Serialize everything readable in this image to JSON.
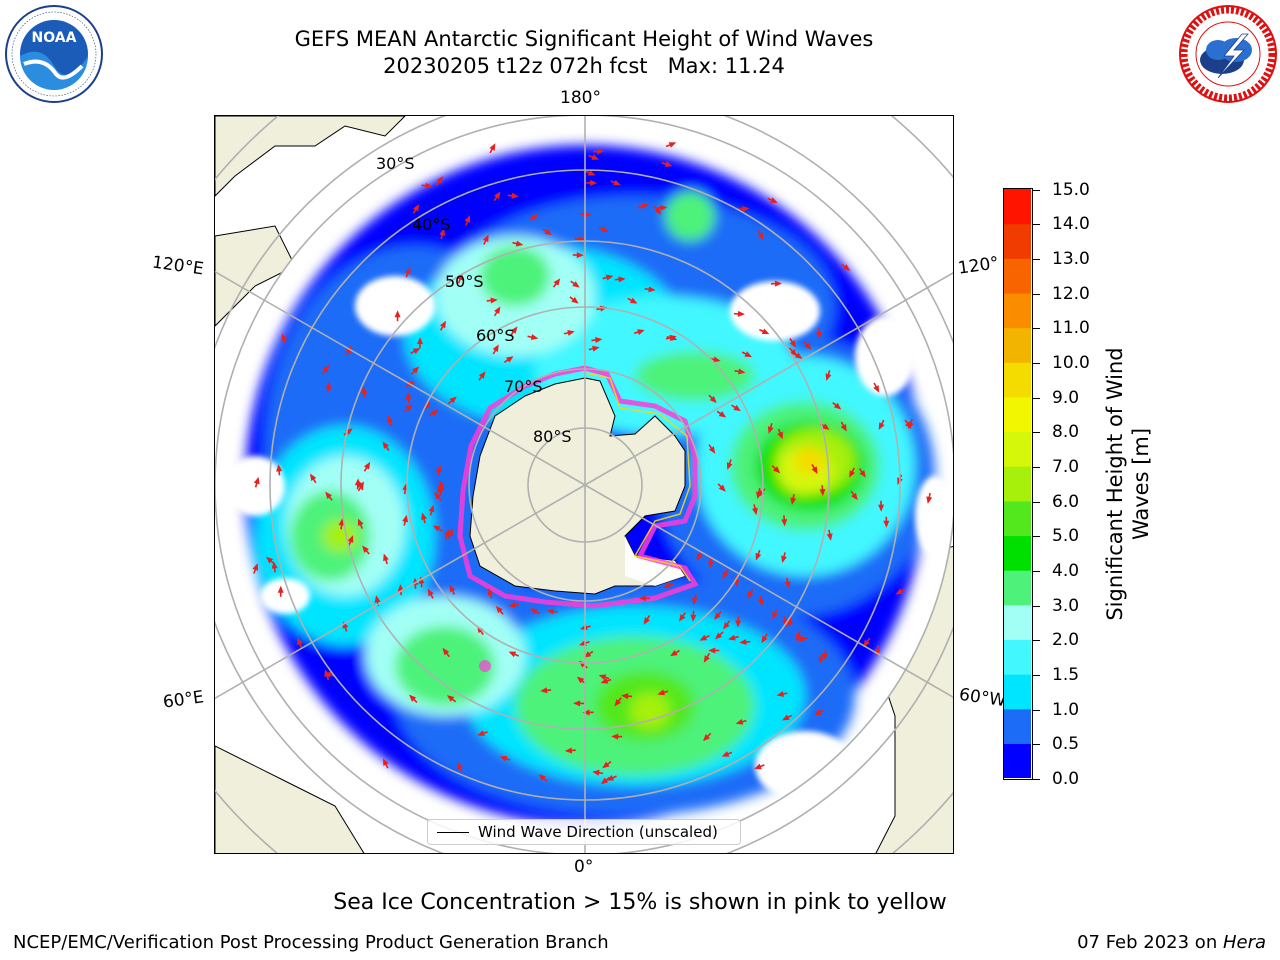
{
  "title_line1": "GEFS MEAN Antarctic Significant Height of Wind Waves",
  "title_line2": "20230205 t12z 072h fcst   Max: 11.24",
  "logos": {
    "noaa": {
      "text": "NOAA",
      "ring_text": "NATIONAL OCEANIC AND ATMOSPHERIC ADMINISTRATION · U.S. DEPARTMENT OF COMMERCE"
    },
    "nws": {
      "ring_text": "NATIONAL WEATHER SERVICE"
    }
  },
  "map": {
    "projection": "south polar stereographic",
    "longitude_labels": {
      "top": "180°",
      "left_upper": "120°E",
      "right_upper": "120°",
      "left_lower": "60°E",
      "right_lower": "60°W",
      "bottom": "0°"
    },
    "latitude_labels": [
      "30°S",
      "40°S",
      "50°S",
      "60°S",
      "70°S",
      "80°S"
    ],
    "legend_label": "Wind Wave Direction (unscaled)",
    "colors": {
      "land": "#efefdb",
      "grid": "#b0b0b0",
      "arrows": "#e8201e",
      "ice": "#ff3ad8"
    }
  },
  "colorbar": {
    "label": "Significant Height of Wind Waves [m]",
    "ticks": [
      "0.0",
      "0.5",
      "1.0",
      "1.5",
      "2.0",
      "3.0",
      "4.0",
      "5.0",
      "6.0",
      "7.0",
      "8.0",
      "9.0",
      "10.0",
      "11.0",
      "12.0",
      "13.0",
      "14.0",
      "15.0"
    ],
    "colors": [
      "#0000ff",
      "#1d6cf7",
      "#00e5ff",
      "#43f7ff",
      "#a2fff6",
      "#4ef27a",
      "#00e000",
      "#53e81e",
      "#a6f00c",
      "#d5f70a",
      "#f2f700",
      "#f5dc00",
      "#f3b400",
      "#fa8c00",
      "#f76400",
      "#f03c00",
      "#ff1400"
    ]
  },
  "bottom_note": "Sea Ice Concentration > 15% is shown in pink to yellow",
  "footer_left": "NCEP/EMC/Verification Post Processing Product Generation Branch",
  "footer_right_date": "07 Feb 2023 on ",
  "footer_right_machine": "Hera"
}
